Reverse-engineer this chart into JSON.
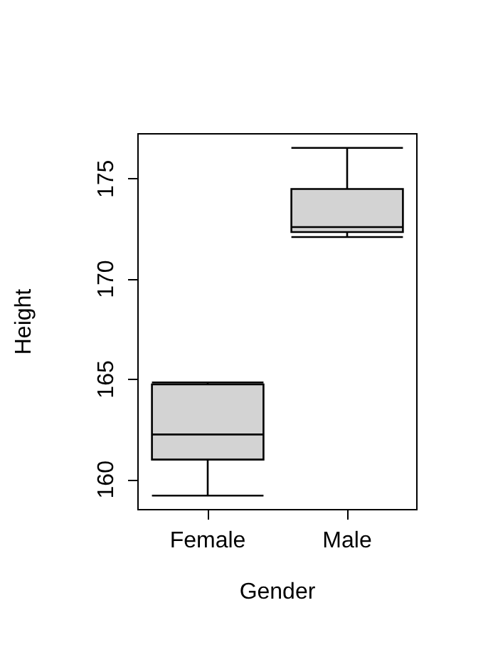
{
  "chart_data": {
    "type": "box",
    "xlabel": "Gender",
    "ylabel": "Height",
    "categories": [
      "Female",
      "Male"
    ],
    "boxes": [
      {
        "low": 159.2,
        "q1": 161.0,
        "median": 162.25,
        "q3": 164.75,
        "high": 164.85
      },
      {
        "low": 172.1,
        "q1": 172.35,
        "median": 172.6,
        "q3": 174.5,
        "high": 176.55
      }
    ],
    "color": "#d3d3d3",
    "ylim": [
      158.5,
      177.25
    ],
    "yticks": [
      160,
      165,
      170,
      175
    ],
    "grid": false
  }
}
